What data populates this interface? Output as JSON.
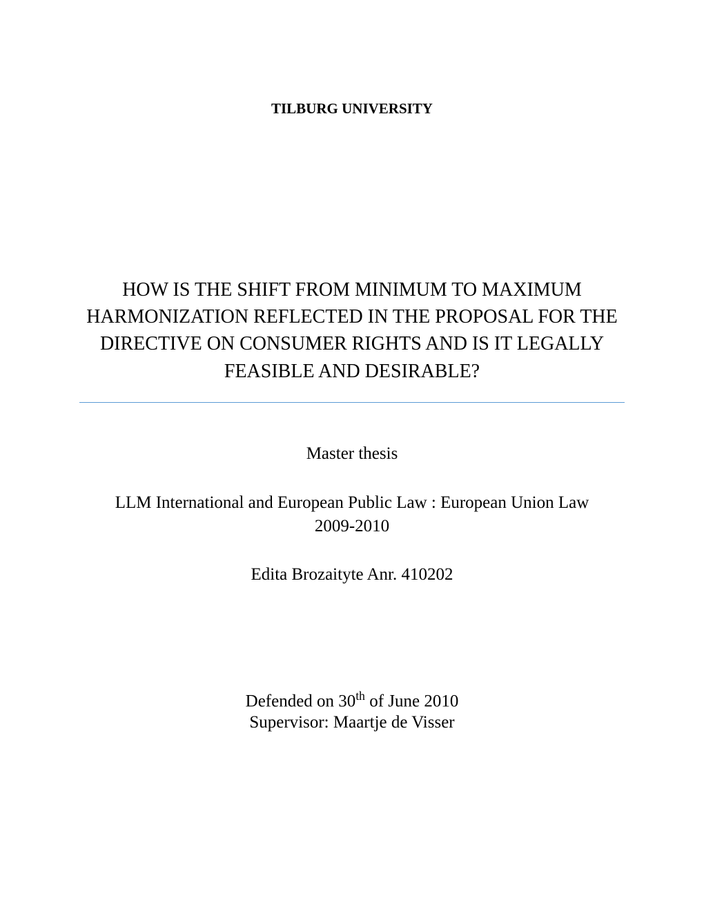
{
  "university": "TILBURG UNIVERSITY",
  "title": "HOW IS THE SHIFT FROM MINIMUM TO MAXIMUM HARMONIZATION REFLECTED IN THE PROPOSAL FOR THE DIRECTIVE ON CONSUMER RIGHTS AND IS IT LEGALLY FEASIBLE AND DESIRABLE?",
  "thesis_type": "Master thesis",
  "program_line1": "LLM International and European Public Law : European Union Law",
  "program_line2": "2009-2010",
  "author": "Edita Brozaityte Anr. 410202",
  "defended_prefix": "Defended on 30",
  "defended_sup": "th",
  "defended_suffix": " of June 2010",
  "supervisor": "Supervisor: Maartje de Visser",
  "divider_color": "#5b9bd5"
}
